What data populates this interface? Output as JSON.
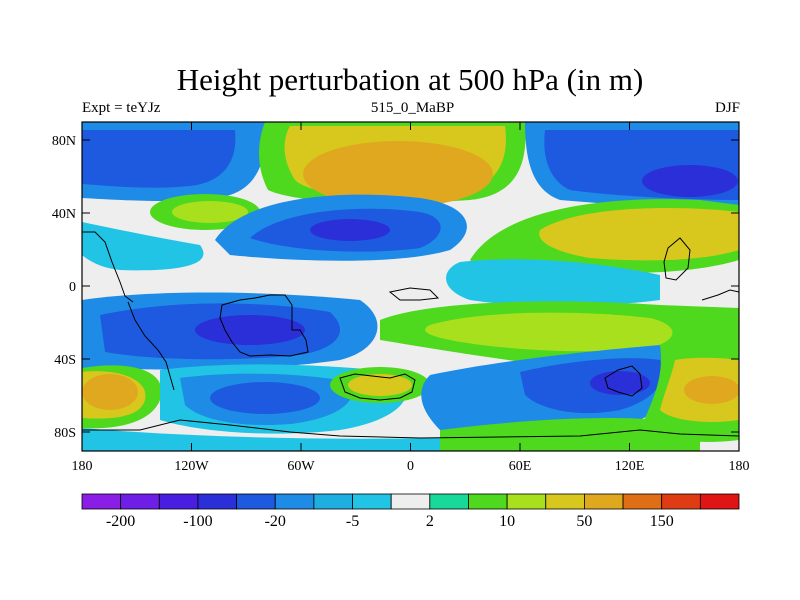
{
  "title": "Height perturbation at 500 hPa (in m)",
  "subtitle_left": "Expt = teYJz",
  "subtitle_center": "515_0_MaBP",
  "subtitle_right": "DJF",
  "lat_ticks": [
    "80N",
    "40N",
    "0",
    "40S",
    "80S"
  ],
  "lon_ticks": [
    "180",
    "120W",
    "60W",
    "0",
    "60E",
    "120E",
    "180"
  ],
  "colorbar": {
    "colors": [
      "#8a1ee6",
      "#6e1ee6",
      "#4a1ee0",
      "#2a2fd8",
      "#1e5ae0",
      "#1e8ce6",
      "#1eaee0",
      "#22c4e6",
      "#eeeeee",
      "#18d89a",
      "#4ed81e",
      "#a8e01e",
      "#d8c81e",
      "#e0a81e",
      "#e06e14",
      "#e03c14",
      "#e01414"
    ],
    "labels": [
      "-200",
      "-100",
      "-20",
      "-5",
      "2",
      "10",
      "50",
      "150"
    ]
  },
  "colors": {
    "deep_blue": "#2a2fd8",
    "blue": "#1e5ae0",
    "mid_blue": "#1e8ce6",
    "cyan": "#22c4e6",
    "white": "#eeeeee",
    "teal": "#18d89a",
    "green": "#4ed81e",
    "yellow_green": "#a8e01e",
    "yellow": "#d8c81e",
    "orange": "#e0a81e"
  }
}
